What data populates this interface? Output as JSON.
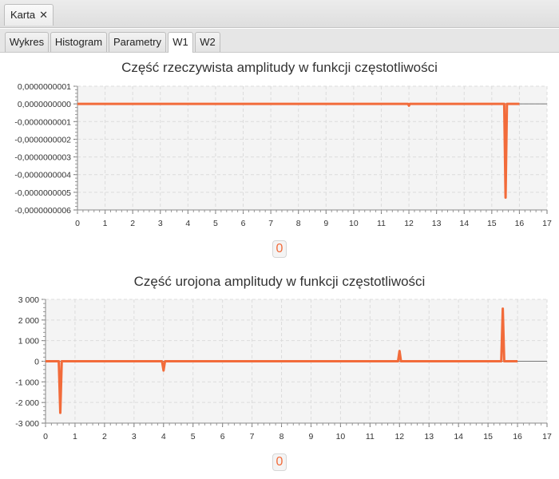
{
  "window": {
    "tab": {
      "label": "Karta",
      "close": "✕"
    }
  },
  "tabs": [
    {
      "label": "Wykres",
      "active": false
    },
    {
      "label": "Histogram",
      "active": false
    },
    {
      "label": "Parametry",
      "active": false
    },
    {
      "label": "W1",
      "active": true
    },
    {
      "label": "W2",
      "active": false
    }
  ],
  "colors": {
    "series": "#f26b3a",
    "grid": "#dcdcdc",
    "plot_bg": "#f4f4f4"
  },
  "chart_data": [
    {
      "type": "line",
      "title": "Część rzeczywista amplitudy w funkcji częstotliwości",
      "xlim": [
        0,
        17
      ],
      "ylim": [
        -6e-10,
        1e-10
      ],
      "x_ticks": [
        "0",
        "1",
        "2",
        "3",
        "4",
        "5",
        "6",
        "7",
        "8",
        "9",
        "10",
        "11",
        "12",
        "13",
        "14",
        "15",
        "16",
        "17"
      ],
      "y_ticks": [
        "0,0000000001",
        "0,0000000000",
        "-0,0000000001",
        "-0,0000000002",
        "-0,0000000003",
        "-0,0000000004",
        "-0,0000000005",
        "-0,0000000006"
      ],
      "grid": true,
      "legend": "0",
      "series": [
        {
          "x": [
            0,
            11.97,
            12.0,
            12.03,
            15.45,
            15.5,
            15.55,
            16
          ],
          "y": [
            0,
            0,
            -1e-11,
            0,
            0,
            -5.3e-10,
            0,
            0
          ]
        }
      ]
    },
    {
      "type": "line",
      "title": "Część urojona amplitudy w funkcji częstotliwości",
      "xlim": [
        0,
        17
      ],
      "ylim": [
        -3000,
        3000
      ],
      "x_ticks": [
        "0",
        "1",
        "2",
        "3",
        "4",
        "5",
        "6",
        "7",
        "8",
        "9",
        "10",
        "11",
        "12",
        "13",
        "14",
        "15",
        "16",
        "17"
      ],
      "y_ticks": [
        "3 000",
        "2 000",
        "1 000",
        "0",
        "-1 000",
        "-2 000",
        "-3 000"
      ],
      "grid": true,
      "legend": "0",
      "series": [
        {
          "x": [
            0,
            0.45,
            0.5,
            0.55,
            3.95,
            4.0,
            4.05,
            11.95,
            12.0,
            12.05,
            15.45,
            15.5,
            15.55,
            16
          ],
          "y": [
            0,
            0,
            -2500,
            0,
            0,
            -450,
            0,
            0,
            500,
            0,
            0,
            2550,
            0,
            0
          ]
        }
      ]
    }
  ]
}
